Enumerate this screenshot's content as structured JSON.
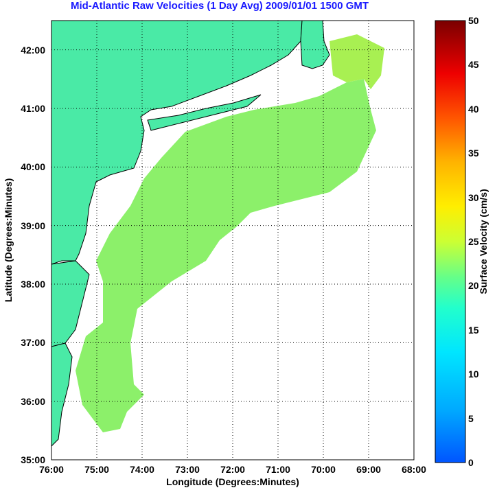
{
  "title": "Mid-Atlantic Raw Velocities (1 Day Avg) 2009/01/01 1500 GMT",
  "xaxis": {
    "label": "Longitude (Degrees:Minutes)",
    "ticks": [
      "76:00",
      "75:00",
      "74:00",
      "73:00",
      "72:00",
      "71:00",
      "70:00",
      "69:00",
      "68:00"
    ]
  },
  "yaxis": {
    "label": "Latitude (Degrees:Minutes)",
    "ticks": [
      "35:00",
      "36:00",
      "37:00",
      "38:00",
      "39:00",
      "40:00",
      "41:00",
      "42:00"
    ]
  },
  "colorbar": {
    "label": "Surface Velocity (cm/s)",
    "ticks": [
      "0",
      "5",
      "10",
      "15",
      "20",
      "25",
      "30",
      "35",
      "40",
      "45",
      "50"
    ],
    "range": [
      0,
      50
    ]
  },
  "colors": {
    "land": "#4aeaa6",
    "coast": "#000000",
    "bathymetry": "#8c8c8c",
    "grid": "#000000"
  },
  "map": {
    "lon_range": [
      -76,
      -68
    ],
    "lat_range": [
      35,
      42.5
    ]
  }
}
